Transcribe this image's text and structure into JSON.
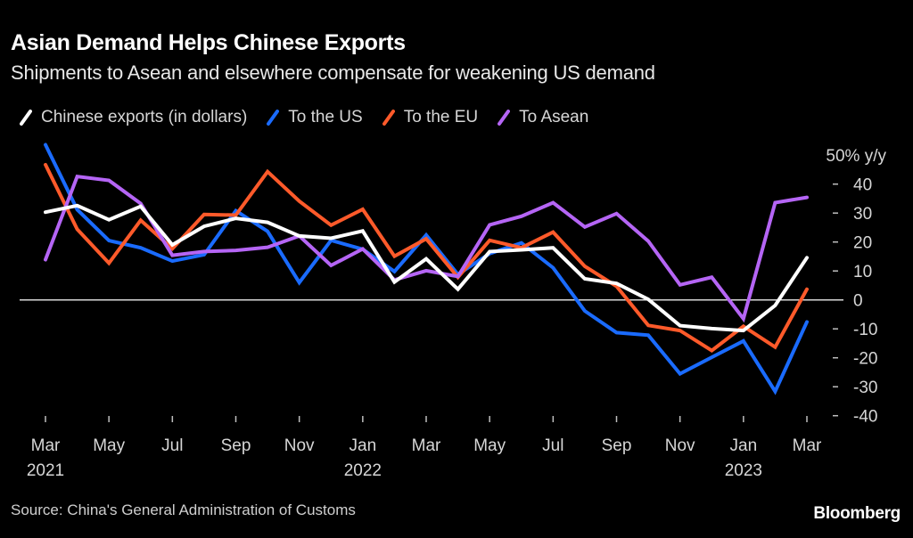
{
  "header": {
    "title": "Asian Demand Helps Chinese Exports",
    "subtitle": "Shipments to Asean and elsewhere compensate for weakening US demand"
  },
  "footer": {
    "source": "Source: China's General Administration of Customs",
    "logo": "Bloomberg"
  },
  "chart_data": {
    "type": "line",
    "title": "Asian Demand Helps Chinese Exports",
    "subtitle": "Shipments to Asean and elsewhere compensate for weakening US demand",
    "xlabel": "",
    "ylabel": "% y/y",
    "y_unit_label": "50% y/y",
    "ylim": [
      -40,
      50
    ],
    "yticks": [
      50,
      40,
      30,
      20,
      10,
      0,
      -10,
      -20,
      -30,
      -40
    ],
    "ytick_labels": [
      "50% y/y",
      "40",
      "30",
      "20",
      "10",
      "0",
      "-10",
      "-20",
      "-30",
      "-40"
    ],
    "zero_line": true,
    "grid": false,
    "legend_position": "top-left",
    "x": [
      "2021-03",
      "2021-04",
      "2021-05",
      "2021-06",
      "2021-07",
      "2021-08",
      "2021-09",
      "2021-10",
      "2021-11",
      "2021-12",
      "2022-01",
      "2022-02",
      "2022-03",
      "2022-04",
      "2022-05",
      "2022-06",
      "2022-07",
      "2022-08",
      "2022-09",
      "2022-10",
      "2022-11",
      "2022-12",
      "2023-01",
      "2023-02",
      "2023-03"
    ],
    "xticks": [
      {
        "index": 0,
        "month": "Mar",
        "year": "2021"
      },
      {
        "index": 2,
        "month": "May",
        "year": ""
      },
      {
        "index": 4,
        "month": "Jul",
        "year": ""
      },
      {
        "index": 6,
        "month": "Sep",
        "year": ""
      },
      {
        "index": 8,
        "month": "Nov",
        "year": ""
      },
      {
        "index": 10,
        "month": "Jan",
        "year": "2022"
      },
      {
        "index": 12,
        "month": "Mar",
        "year": ""
      },
      {
        "index": 14,
        "month": "May",
        "year": ""
      },
      {
        "index": 16,
        "month": "Jul",
        "year": ""
      },
      {
        "index": 18,
        "month": "Sep",
        "year": ""
      },
      {
        "index": 20,
        "month": "Nov",
        "year": ""
      },
      {
        "index": 22,
        "month": "Jan",
        "year": "2023"
      },
      {
        "index": 24,
        "month": "Mar",
        "year": ""
      }
    ],
    "series": [
      {
        "name": "To the US",
        "color": "#1a6bff",
        "values": [
          53.6,
          31.2,
          20.5,
          18.0,
          13.4,
          15.6,
          30.8,
          23.7,
          6.0,
          20.6,
          17.5,
          9.8,
          22.4,
          8.8,
          16.0,
          19.7,
          11.1,
          -3.8,
          -11.3,
          -12.2,
          -25.5,
          -19.8,
          -14.2,
          -31.6,
          -7.6
        ]
      },
      {
        "name": "To the EU",
        "color": "#ff5a2a",
        "values": [
          46.7,
          24.4,
          12.7,
          27.5,
          17.7,
          29.5,
          29.3,
          44.3,
          34.1,
          25.8,
          31.3,
          15.1,
          21.1,
          7.8,
          20.6,
          18.0,
          23.4,
          11.6,
          4.7,
          -8.8,
          -10.6,
          -17.5,
          -9.1,
          -16.3,
          3.7
        ]
      },
      {
        "name": "To Asean",
        "color": "#b565f5",
        "values": [
          13.9,
          42.6,
          41.3,
          33.3,
          15.4,
          16.7,
          17.1,
          18.2,
          22.1,
          11.9,
          17.6,
          6.9,
          10.1,
          8.1,
          25.9,
          28.9,
          33.6,
          25.2,
          29.8,
          20.3,
          5.2,
          7.8,
          -6.5,
          33.6,
          35.4
        ]
      },
      {
        "name": "Chinese exports (in dollars)",
        "color": "#ffffff",
        "values": [
          30.3,
          32.6,
          27.7,
          32.3,
          19.0,
          25.4,
          28.2,
          26.8,
          22.1,
          21.3,
          23.8,
          6.2,
          14.2,
          3.7,
          16.7,
          17.3,
          18.0,
          7.3,
          5.7,
          0.2,
          -8.9,
          -9.9,
          -10.6,
          -1.9,
          14.6
        ]
      }
    ],
    "legend": [
      {
        "name": "Chinese exports (in dollars)",
        "color": "#ffffff"
      },
      {
        "name": "To the US",
        "color": "#1a6bff"
      },
      {
        "name": "To the EU",
        "color": "#ff5a2a"
      },
      {
        "name": "To Asean",
        "color": "#b565f5"
      }
    ]
  }
}
